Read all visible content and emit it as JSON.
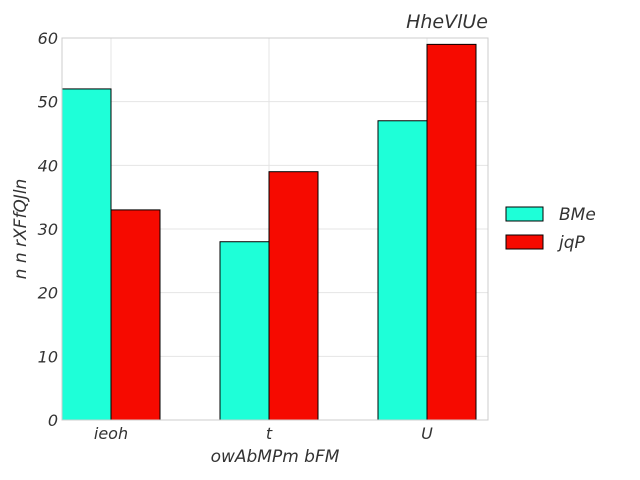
{
  "chart_data": {
    "type": "bar",
    "title": "HheVlUe",
    "xlabel": "owAbMPm bFM",
    "ylabel": "n n rXFfQJln",
    "categories": [
      "ieoh",
      "t",
      "U"
    ],
    "series": [
      {
        "name": "BMe",
        "values": [
          52,
          28,
          47
        ],
        "color": "#1effd8"
      },
      {
        "name": "jqP",
        "values": [
          33,
          39,
          59
        ],
        "color": "#f60a00"
      }
    ],
    "ylim": [
      0,
      60
    ],
    "yticks": [
      0,
      10,
      20,
      30,
      40,
      50,
      60
    ],
    "grid": true,
    "legend_position": "right"
  }
}
